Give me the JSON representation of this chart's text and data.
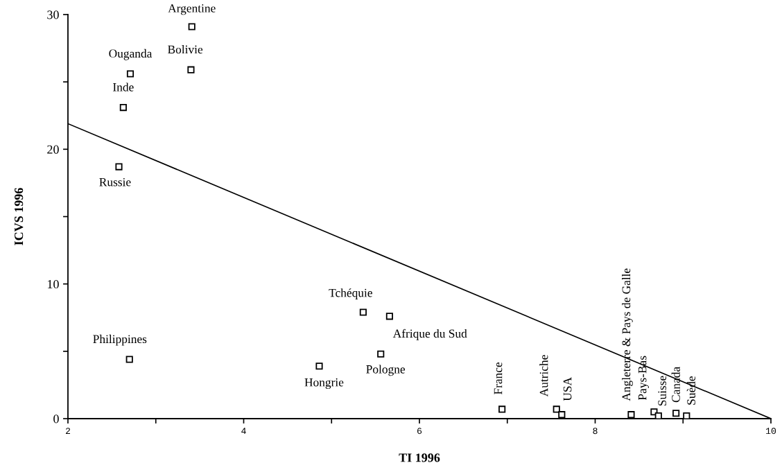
{
  "chart_data": {
    "type": "scatter",
    "xlabel": "TI 1996",
    "ylabel": "ICVS 1996",
    "xlim": [
      2,
      10
    ],
    "xticks": [
      2,
      {
        "value": 3,
        "label": null
      },
      4,
      {
        "value": 5,
        "label": null
      },
      6,
      {
        "value": 7,
        "label": null
      },
      8,
      {
        "value": 9,
        "label": null
      },
      10
    ],
    "ylim": [
      0,
      30
    ],
    "yticks": [
      0,
      {
        "value": 5,
        "label": null
      },
      10,
      {
        "value": 15,
        "label": null
      },
      20,
      {
        "value": 25,
        "label": null
      },
      30
    ],
    "grid": false,
    "marker": "square",
    "series": [
      {
        "color": "#000000",
        "x": [
          3.41,
          3.4,
          2.71,
          2.63,
          2.58,
          2.7,
          4.86,
          5.36,
          5.66,
          5.56,
          6.94,
          7.56,
          7.62,
          8.41,
          8.67,
          8.72,
          8.92,
          9.04
        ],
        "values": [
          29.1,
          25.9,
          25.6,
          23.1,
          18.7,
          4.4,
          3.9,
          7.9,
          7.6,
          4.8,
          0.7,
          0.7,
          0.3,
          0.3,
          0.5,
          0.2,
          0.4,
          0.2
        ],
        "value_labels": [
          "Argentine",
          "Bolivie",
          "Ouganda",
          "Inde",
          "Russie",
          "Philippines",
          "Hongrie",
          "Tchéquie",
          "Afrique du Sud",
          "Pologne",
          "France",
          "Autriche",
          "USA",
          "Angleterre & Pays de Galle",
          "Pays-Bas",
          "Suisse",
          "Canada",
          "Suède"
        ]
      },
      {
        "type": "line",
        "color": "#000000",
        "marker": "none",
        "line_style": "solid",
        "x": [
          2,
          10
        ],
        "values": [
          21.9,
          0
        ]
      }
    ]
  }
}
